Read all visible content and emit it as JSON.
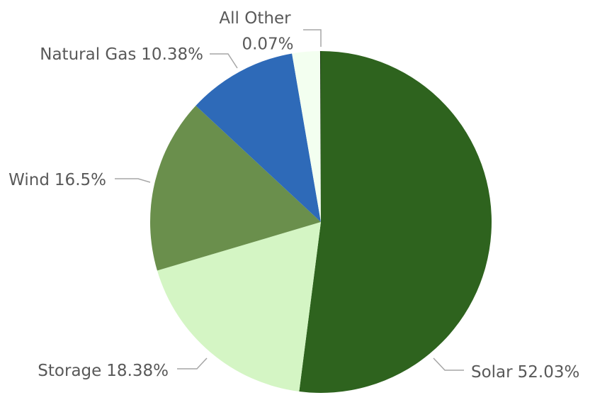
{
  "chart_data": {
    "type": "pie",
    "categories": [
      "Solar",
      "Storage",
      "Wind",
      "Natural Gas",
      null,
      "All Other"
    ],
    "values": [
      52.03,
      18.38,
      16.5,
      10.38,
      2.64,
      0.07
    ],
    "value_labels": [
      "52.03%",
      "18.38%",
      "16.5%",
      "10.38%",
      null,
      "0.07%"
    ],
    "colors": [
      "#2e631e",
      "#d4f5c4",
      "#6a8f4c",
      "#2e6ab8",
      "#f3fff0",
      "#1a3a10"
    ]
  }
}
